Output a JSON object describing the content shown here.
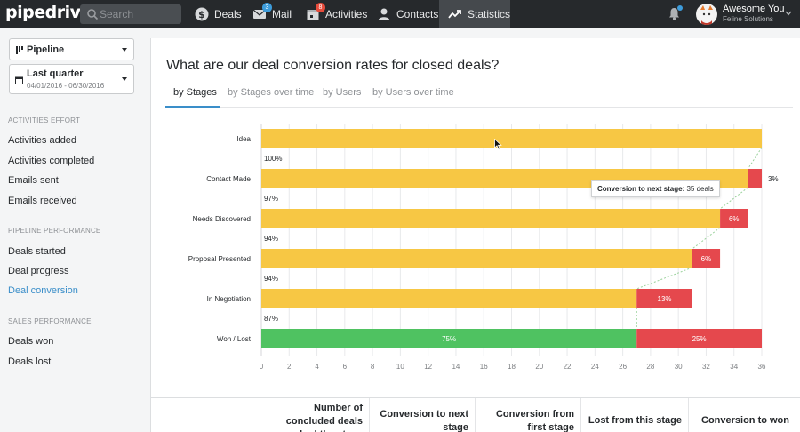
{
  "app": {
    "logo_text": "pipedrive",
    "search_placeholder": "Search",
    "nav": [
      {
        "label": "Deals",
        "icon": "dollar-icon",
        "badge": ""
      },
      {
        "label": "Mail",
        "icon": "mail-icon",
        "badge": "3"
      },
      {
        "label": "Activities",
        "icon": "calendar-icon",
        "badge": "8"
      },
      {
        "label": "Contacts",
        "icon": "person-icon",
        "badge": ""
      },
      {
        "label": "Statistics",
        "icon": "trend-icon",
        "badge": ""
      }
    ],
    "active_nav": "Statistics",
    "user": {
      "name": "Awesome You",
      "company": "Feline Solutions"
    }
  },
  "sidebar": {
    "pipeline_label": "Pipeline",
    "period_label": "Last quarter",
    "period_range": "04/01/2016 - 06/30/2016",
    "sections": [
      {
        "heading": "ACTIVITIES EFFORT",
        "items": [
          "Activities added",
          "Activities completed",
          "Emails sent",
          "Emails received"
        ]
      },
      {
        "heading": "PIPELINE PERFORMANCE",
        "items": [
          "Deals started",
          "Deal progress",
          "Deal conversion"
        ]
      },
      {
        "heading": "SALES PERFORMANCE",
        "items": [
          "Deals won",
          "Deals lost"
        ]
      }
    ],
    "active_item": "Deal conversion"
  },
  "main": {
    "title": "What are our deal conversion rates for closed deals?",
    "tabs": [
      "by Stages",
      "by Stages over time",
      "by Users",
      "by Users over time"
    ],
    "active_tab": "by Stages",
    "tooltip": {
      "label": "Conversion to next stage:",
      "value": "35 deals"
    },
    "table_headers": [
      "Number of concluded deals reached the stage",
      "Conversion to next stage",
      "Conversion from first stage",
      "Lost from this stage",
      "Conversion to won"
    ]
  },
  "colors": {
    "yellow": "#f7c744",
    "red": "#e5484d",
    "green": "#4fc261",
    "accent": "#3a8ec9",
    "topbar": "#26292c"
  },
  "chart_data": {
    "type": "bar",
    "orientation": "horizontal",
    "stacked": true,
    "categories": [
      "Idea",
      "Contact Made",
      "Needs Discovered",
      "Proposal Presented",
      "In Negotiation",
      "Won / Lost"
    ],
    "series": [
      {
        "name": "Converted",
        "values": [
          36,
          35,
          33,
          31,
          27,
          27
        ]
      },
      {
        "name": "Lost",
        "values": [
          0,
          1,
          2,
          2,
          4,
          9
        ]
      }
    ],
    "converted_labels": [
      "100%",
      "97%",
      "94%",
      "94%",
      "87%",
      "75%"
    ],
    "lost_labels": [
      "",
      "3%",
      "6%",
      "6%",
      "13%",
      "25%"
    ],
    "xlim": [
      0,
      36
    ],
    "xticks": [
      0,
      2,
      4,
      6,
      8,
      10,
      12,
      14,
      16,
      18,
      20,
      22,
      24,
      26,
      28,
      30,
      32,
      34,
      36
    ],
    "grid": true
  }
}
